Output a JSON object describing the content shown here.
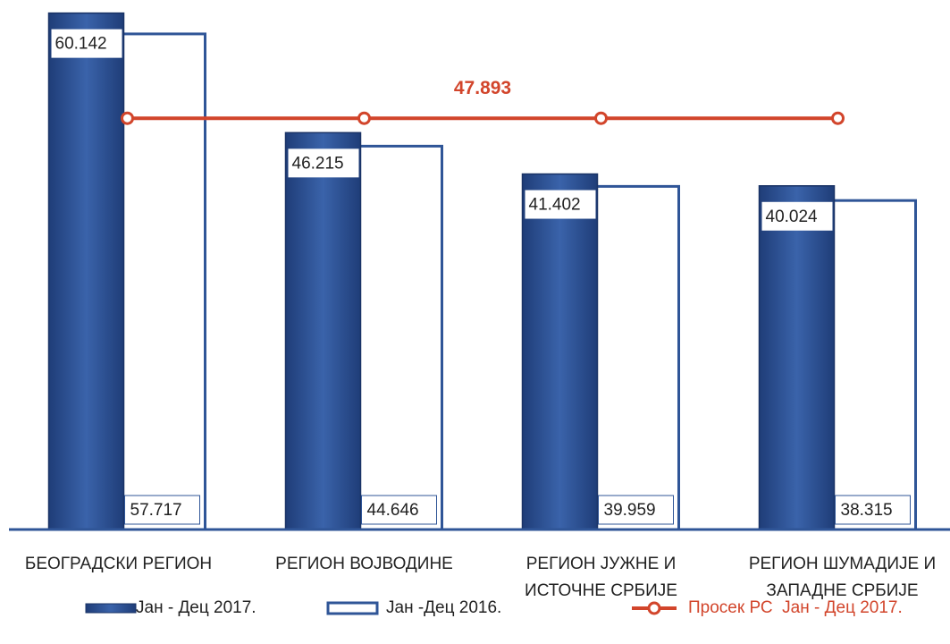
{
  "chart_data": {
    "type": "bar",
    "categories": [
      "БЕОГРАДСКИ РЕГИОН",
      "РЕГИОН ВОЈВОДИНЕ",
      "РЕГИОН ЈУЖНЕ И\nИСТОЧНЕ СРБИЈЕ",
      "РЕГИОН ШУМАДИЈЕ И\nЗАПАДНЕ СРБИЈЕ"
    ],
    "series": [
      {
        "name": "Јан - Дец 2017.",
        "color": "#2f5597",
        "values": [
          60142,
          46215,
          41402,
          40024
        ],
        "value_labels": [
          "60.142",
          "46.215",
          "41.402",
          "40.024"
        ]
      },
      {
        "name": "Јан -Дец 2016.",
        "color": "#ffffff",
        "values": [
          57717,
          44646,
          39959,
          38315
        ],
        "value_labels": [
          "57.717",
          "44.646",
          "39.959",
          "38.315"
        ]
      },
      {
        "name": "Просек РС  Јан - Дец 2017.",
        "type": "line",
        "color": "#d2452b",
        "values": [
          47893,
          47893,
          47893,
          47893
        ],
        "value_label": "47.893"
      }
    ],
    "ylim": [
      0,
      60000
    ]
  }
}
